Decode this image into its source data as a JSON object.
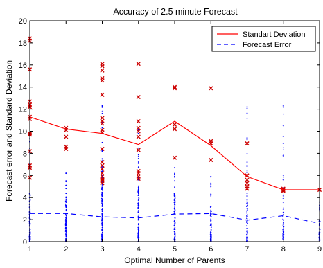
{
  "chart_data": {
    "type": "scatter",
    "title": "Accuracy of 2.5 minute Forecast",
    "xlabel": "Optimal Number of Parents",
    "ylabel": "Forecast error and Standard Deviation",
    "xlim": [
      1,
      9
    ],
    "ylim": [
      0,
      20
    ],
    "xticks": [
      "1",
      "2",
      "3",
      "4",
      "5",
      "6",
      "7",
      "8",
      "9"
    ],
    "yticks": [
      "0",
      "2",
      "4",
      "6",
      "8",
      "10",
      "12",
      "14",
      "16",
      "18",
      "20"
    ],
    "grid": false,
    "legend_position": "top-right",
    "series": [
      {
        "name": "Standart Deviation",
        "style": "solid-line",
        "color": "#ff0000",
        "x": [
          1,
          2,
          3,
          4,
          5,
          6,
          7,
          8,
          9
        ],
        "y": [
          11.3,
          10.2,
          9.8,
          8.8,
          10.9,
          8.7,
          5.9,
          4.7,
          4.7
        ]
      },
      {
        "name": "Forecast Error",
        "style": "dashed-line",
        "color": "#0000ff",
        "x": [
          1,
          2,
          3,
          4,
          5,
          6,
          7,
          8,
          9
        ],
        "y": [
          2.55,
          2.55,
          2.25,
          2.15,
          2.5,
          2.55,
          1.95,
          2.35,
          1.65
        ]
      },
      {
        "style": "x-markers",
        "color": "#cc0000",
        "x": [
          1,
          1,
          1,
          1,
          1,
          1,
          1,
          1,
          1,
          1,
          1,
          1,
          1,
          1,
          2,
          2,
          2,
          2,
          2,
          3,
          3,
          3,
          3,
          3,
          3,
          3,
          3,
          3,
          3,
          3,
          3,
          3,
          3,
          3,
          3,
          3,
          3,
          3,
          3,
          3,
          4,
          4,
          4,
          4,
          4,
          4,
          4,
          4,
          4,
          4,
          4,
          5,
          5,
          5,
          5,
          5,
          6,
          6,
          6,
          6,
          7,
          7,
          7,
          7,
          7,
          7,
          8,
          8,
          8,
          9
        ],
        "y": [
          18.4,
          18.2,
          15.6,
          12.7,
          12.4,
          12.2,
          11.3,
          11.1,
          9.8,
          9.7,
          8.2,
          6.9,
          6.7,
          5.8,
          10.3,
          10.1,
          9.5,
          8.6,
          8.4,
          16.1,
          15.9,
          15.5,
          14.8,
          14.6,
          13.3,
          11.2,
          10.9,
          10.7,
          10.1,
          9.9,
          8.4,
          7.2,
          6.9,
          6.6,
          6.2,
          5.9,
          5.7,
          5.6,
          5.5,
          5.3,
          16.1,
          13.1,
          10.9,
          10.3,
          10.0,
          9.5,
          8.3,
          6.4,
          6.2,
          5.9,
          5.7,
          14.0,
          13.9,
          10.6,
          10.2,
          7.6,
          13.9,
          9.1,
          8.9,
          7.4,
          8.9,
          6.0,
          5.6,
          5.3,
          5.0,
          4.8,
          4.8,
          4.7,
          4.6,
          4.7
        ]
      },
      {
        "style": "dot-markers",
        "color": "#0000ff",
        "columns": [
          {
            "x": 1,
            "ymin": 0.0,
            "ymax": 9.5,
            "dense_to": 4.6,
            "extra": []
          },
          {
            "x": 2,
            "ymin": 0.0,
            "ymax": 6.2,
            "dense_to": 4.2,
            "extra": [
              5.1,
              5.5,
              6.2
            ]
          },
          {
            "x": 3,
            "ymin": 0.0,
            "ymax": 12.3,
            "dense_to": 6.8,
            "extra": [
              7.5,
              8.2,
              9.8,
              11.8,
              12.3
            ]
          },
          {
            "x": 4,
            "ymin": 0.0,
            "ymax": 10.3,
            "dense_to": 5.0,
            "extra": [
              5.6,
              6.3,
              7.1,
              9.8,
              10.3
            ]
          },
          {
            "x": 5,
            "ymin": 0.0,
            "ymax": 6.7,
            "dense_to": 4.4,
            "extra": [
              5.5,
              6.1,
              6.7
            ]
          },
          {
            "x": 6,
            "ymin": 0.0,
            "ymax": 5.9,
            "dense_to": 3.5,
            "extra": [
              4.3,
              5.2,
              5.9
            ]
          },
          {
            "x": 7,
            "ymin": 0.0,
            "ymax": 12.2,
            "dense_to": 3.6,
            "extra": [
              4.7,
              6.3,
              9.4,
              12.2
            ]
          },
          {
            "x": 8,
            "ymin": 0.0,
            "ymax": 12.3,
            "dense_to": 2.7,
            "extra": [
              3.9,
              5.6,
              7.8,
              12.3
            ]
          },
          {
            "x": 9,
            "ymin": 0.1,
            "ymax": 3.6,
            "dense_to": 2.0,
            "extra": [
              2.8,
              3.3,
              3.6
            ]
          }
        ]
      }
    ]
  }
}
